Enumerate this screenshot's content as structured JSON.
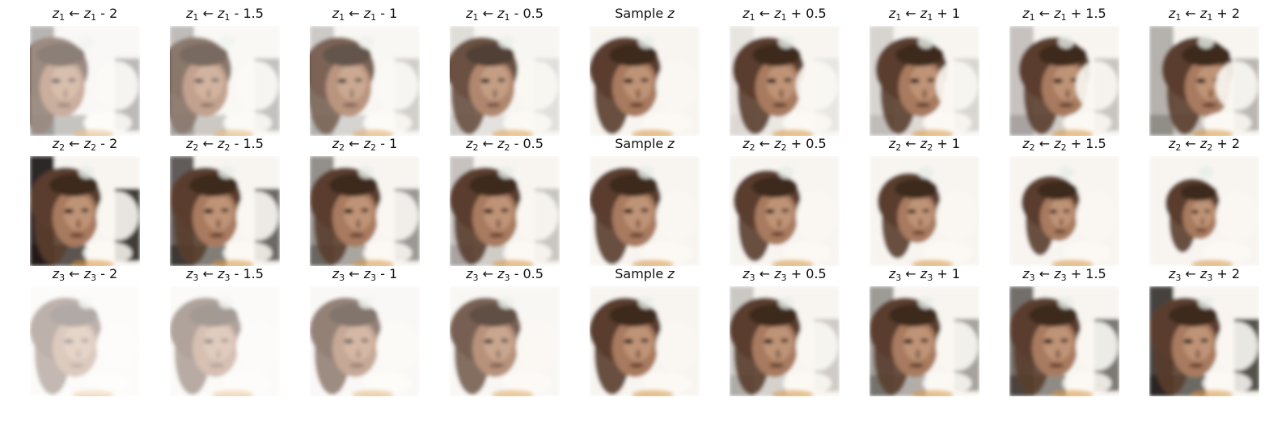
{
  "figure": {
    "rows": [
      {
        "latent": "z1",
        "var_symbol": "z",
        "var_index": "1",
        "panels": [
          {
            "kind": "shift",
            "op": "-",
            "amount": "2",
            "shift_value": -2
          },
          {
            "kind": "shift",
            "op": "-",
            "amount": "1.5",
            "shift_value": -1.5
          },
          {
            "kind": "shift",
            "op": "-",
            "amount": "1",
            "shift_value": -1
          },
          {
            "kind": "shift",
            "op": "-",
            "amount": "0.5",
            "shift_value": -0.5
          },
          {
            "kind": "sample",
            "label": "Sample",
            "symbol": "z",
            "shift_value": 0
          },
          {
            "kind": "shift",
            "op": "+",
            "amount": "0.5",
            "shift_value": 0.5
          },
          {
            "kind": "shift",
            "op": "+",
            "amount": "1",
            "shift_value": 1
          },
          {
            "kind": "shift",
            "op": "+",
            "amount": "1.5",
            "shift_value": 1.5
          },
          {
            "kind": "shift",
            "op": "+",
            "amount": "2",
            "shift_value": 2
          }
        ]
      },
      {
        "latent": "z2",
        "var_symbol": "z",
        "var_index": "2",
        "panels": [
          {
            "kind": "shift",
            "op": "-",
            "amount": "2",
            "shift_value": -2
          },
          {
            "kind": "shift",
            "op": "-",
            "amount": "1.5",
            "shift_value": -1.5
          },
          {
            "kind": "shift",
            "op": "-",
            "amount": "1",
            "shift_value": -1
          },
          {
            "kind": "shift",
            "op": "-",
            "amount": "0.5",
            "shift_value": -0.5
          },
          {
            "kind": "sample",
            "label": "Sample",
            "symbol": "z",
            "shift_value": 0
          },
          {
            "kind": "shift",
            "op": "+",
            "amount": "0.5",
            "shift_value": 0.5
          },
          {
            "kind": "shift",
            "op": "+",
            "amount": "1",
            "shift_value": 1
          },
          {
            "kind": "shift",
            "op": "+",
            "amount": "1.5",
            "shift_value": 1.5
          },
          {
            "kind": "shift",
            "op": "+",
            "amount": "2",
            "shift_value": 2
          }
        ]
      },
      {
        "latent": "z3",
        "var_symbol": "z",
        "var_index": "3",
        "panels": [
          {
            "kind": "shift",
            "op": "-",
            "amount": "2",
            "shift_value": -2
          },
          {
            "kind": "shift",
            "op": "-",
            "amount": "1.5",
            "shift_value": -1.5
          },
          {
            "kind": "shift",
            "op": "-",
            "amount": "1",
            "shift_value": -1
          },
          {
            "kind": "shift",
            "op": "-",
            "amount": "0.5",
            "shift_value": -0.5
          },
          {
            "kind": "sample",
            "label": "Sample",
            "symbol": "z",
            "shift_value": 0
          },
          {
            "kind": "shift",
            "op": "+",
            "amount": "0.5",
            "shift_value": 0.5
          },
          {
            "kind": "shift",
            "op": "+",
            "amount": "1",
            "shift_value": 1
          },
          {
            "kind": "shift",
            "op": "+",
            "amount": "1.5",
            "shift_value": 1.5
          },
          {
            "kind": "shift",
            "op": "+",
            "amount": "2",
            "shift_value": 2
          }
        ]
      }
    ],
    "arrow": "←"
  }
}
